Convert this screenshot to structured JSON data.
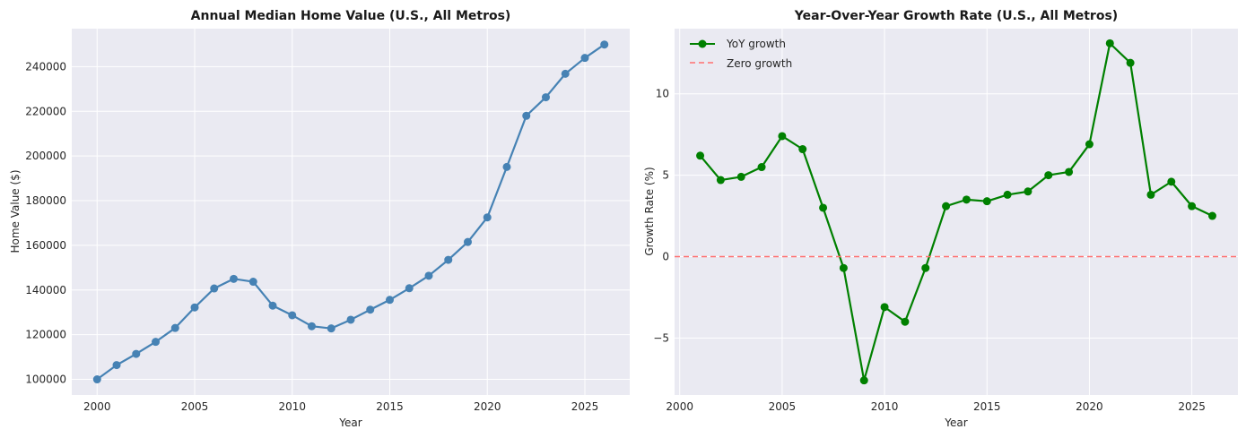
{
  "colors": {
    "plot_bg": "#eaeaf2",
    "grid": "#ffffff",
    "home_value_line": "#4682b4",
    "yoy_line": "#008000",
    "zero_line": "#ff6f6f"
  },
  "chart_data": [
    {
      "type": "line",
      "title": "Annual Median Home Value (U.S., All Metros)",
      "xlabel": "Year",
      "ylabel": "Home Value ($)",
      "xlim": [
        1998.7,
        2027.3
      ],
      "ylim": [
        93000,
        257000
      ],
      "xticks": [
        2000,
        2005,
        2010,
        2015,
        2020,
        2025
      ],
      "yticks": [
        100000,
        120000,
        140000,
        160000,
        180000,
        200000,
        220000,
        240000
      ],
      "grid": true,
      "legend": "none",
      "series": [
        {
          "color": "#4682b4",
          "marker": "circle",
          "x": [
            2000,
            2001,
            2002,
            2003,
            2004,
            2005,
            2006,
            2007,
            2008,
            2009,
            2010,
            2011,
            2012,
            2013,
            2014,
            2015,
            2016,
            2017,
            2018,
            2019,
            2020,
            2021,
            2022,
            2023,
            2024,
            2025,
            2026
          ],
          "y": [
            100000,
            106400,
            111400,
            116800,
            123000,
            132200,
            140700,
            145000,
            143700,
            133000,
            128700,
            123800,
            122800,
            126700,
            131200,
            135600,
            140800,
            146400,
            153500,
            161500,
            172500,
            195100,
            218000,
            226300,
            236800,
            243900,
            249900
          ]
        }
      ]
    },
    {
      "type": "line",
      "title": "Year-Over-Year Growth Rate (U.S., All Metros)",
      "xlabel": "Year",
      "ylabel": "Growth Rate (%)",
      "xlim": [
        1999.75,
        2027.25
      ],
      "ylim": [
        -8.5,
        14.0
      ],
      "xticks": [
        2000,
        2005,
        2010,
        2015,
        2020,
        2025
      ],
      "yticks": [
        -5,
        0,
        5,
        10
      ],
      "grid": true,
      "legend": "top-left",
      "series": [
        {
          "name": "YoY growth",
          "color": "#008000",
          "marker": "circle",
          "x": [
            2001,
            2002,
            2003,
            2004,
            2005,
            2006,
            2007,
            2008,
            2009,
            2010,
            2011,
            2012,
            2013,
            2014,
            2015,
            2016,
            2017,
            2018,
            2019,
            2020,
            2021,
            2022,
            2023,
            2024,
            2025,
            2026
          ],
          "y": [
            6.2,
            4.7,
            4.9,
            5.5,
            7.4,
            6.6,
            3.0,
            -0.7,
            -7.6,
            -3.1,
            -4.0,
            -0.7,
            3.1,
            3.5,
            3.4,
            3.8,
            4.0,
            5.0,
            5.2,
            6.9,
            13.1,
            11.9,
            3.8,
            4.6,
            3.1,
            2.5
          ]
        },
        {
          "name": "Zero growth",
          "color": "#ff6f6f",
          "style": "dashed",
          "y_constant": 0
        }
      ]
    }
  ]
}
